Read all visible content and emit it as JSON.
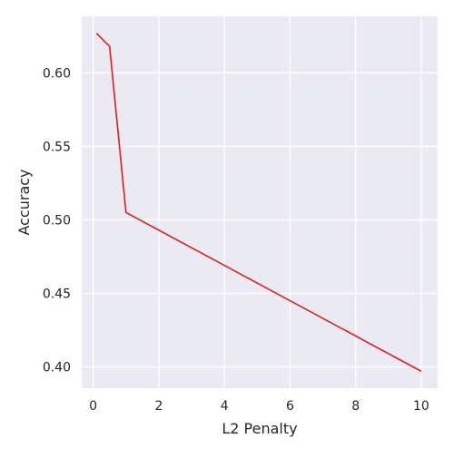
{
  "chart_data": {
    "type": "line",
    "xlabel": "L2 Penalty",
    "ylabel": "Accuracy",
    "xlim": [
      -0.35,
      10.5
    ],
    "ylim": [
      0.3855,
      0.6385
    ],
    "xticks": [
      0,
      2,
      4,
      6,
      8,
      10
    ],
    "yticks": [
      0.4,
      0.45,
      0.5,
      0.55,
      0.6
    ],
    "xtick_labels": [
      "0",
      "2",
      "4",
      "6",
      "8",
      "10"
    ],
    "ytick_labels": [
      "0.40",
      "0.45",
      "0.50",
      "0.55",
      "0.60"
    ],
    "grid": true,
    "style": "seaborn darkgrid",
    "series": [
      {
        "color": "#e41a1c",
        "x": [
          0.1,
          0.5,
          1,
          10
        ],
        "y": [
          0.627,
          0.618,
          0.505,
          0.397
        ]
      }
    ]
  }
}
